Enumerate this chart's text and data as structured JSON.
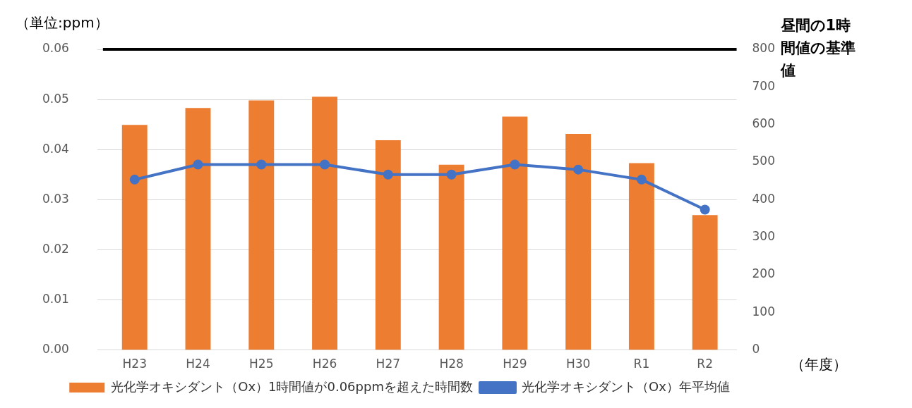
{
  "chart_data": {
    "type": "bar",
    "ylabel": "（単位:ppm）",
    "xlabel": "（年度）",
    "categories": [
      "H23",
      "H24",
      "H25",
      "H26",
      "H27",
      "H28",
      "H29",
      "H30",
      "R1",
      "R2"
    ],
    "series": [
      {
        "name": "光化学オキシダント（Ox）1時間値が0.06ppmを超えた時間数",
        "axis": "y2",
        "color": "#ed7d31",
        "values": [
          599,
          644,
          664,
          674,
          558,
          493,
          621,
          575,
          497,
          359
        ]
      },
      {
        "name": "光化学オキシダント（Ox）年平均値",
        "type": "line",
        "color": "#4472c4",
        "values": [
          0.034,
          0.037,
          0.037,
          0.037,
          0.035,
          0.035,
          0.037,
          0.036,
          0.034,
          0.028
        ]
      }
    ],
    "ylim": [
      0,
      0.06
    ],
    "yticks": [
      {
        "value": 0,
        "label": "0.00"
      },
      {
        "value": 0.01,
        "label": "0.01"
      },
      {
        "value": 0.02,
        "label": "0.02"
      },
      {
        "value": 0.03,
        "label": "0.03"
      },
      {
        "value": 0.04,
        "label": "0.04"
      },
      {
        "value": 0.05,
        "label": "0.05"
      },
      {
        "value": 0.06,
        "label": "0.06"
      }
    ],
    "y2lim": [
      0,
      800
    ],
    "y2ticks": [
      0,
      100,
      200,
      300,
      400,
      500,
      600,
      700,
      800
    ],
    "ref_lines": [
      {
        "axis": "y",
        "value": 0.06,
        "label": "昼間の1時間値の基準値",
        "color": "#000000"
      }
    ],
    "grid": "y",
    "legend": "bottom",
    "marker": "circle"
  }
}
